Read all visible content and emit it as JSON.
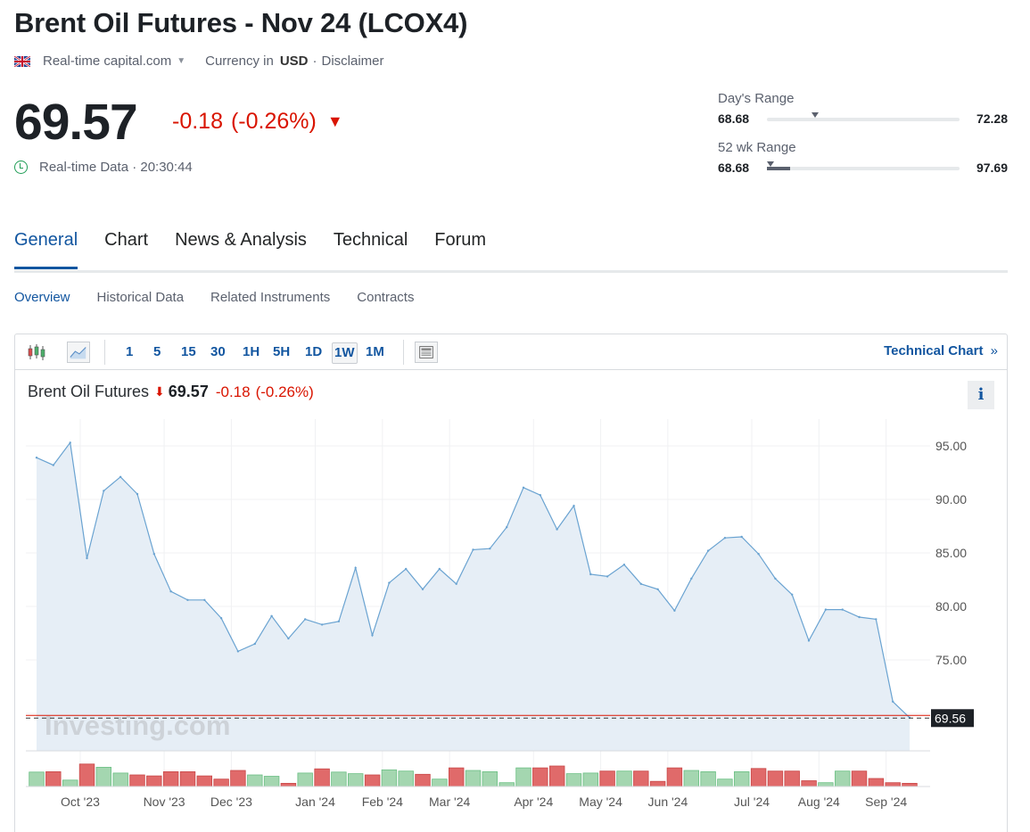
{
  "title": "Brent Oil Futures - Nov 24 (LCOX4)",
  "meta": {
    "source": "Real-time capital.com",
    "currency_label": "Currency in",
    "currency": "USD",
    "separator": "·",
    "disclaimer": "Disclaimer"
  },
  "quote": {
    "price": "69.57",
    "change": "-0.18",
    "change_pct": "(-0.26%)",
    "realtime_label": "Real-time Data · 20:30:44"
  },
  "ranges": {
    "day": {
      "label": "Day's Range",
      "low": "68.68",
      "high": "72.28",
      "position": 0.25,
      "fill": 0
    },
    "week52": {
      "label": "52 wk Range",
      "low": "68.68",
      "high": "97.69",
      "position": 0.02,
      "fill": 0.12
    }
  },
  "tabs": [
    {
      "label": "General",
      "active": true
    },
    {
      "label": "Chart",
      "active": false
    },
    {
      "label": "News & Analysis",
      "active": false
    },
    {
      "label": "Technical",
      "active": false
    },
    {
      "label": "Forum",
      "active": false
    }
  ],
  "subtabs": [
    {
      "label": "Overview",
      "active": true
    },
    {
      "label": "Historical Data",
      "active": false
    },
    {
      "label": "Related Instruments",
      "active": false
    },
    {
      "label": "Contracts",
      "active": false
    }
  ],
  "toolbar": {
    "timeframes": [
      "1",
      "5",
      "15",
      "30",
      "1H",
      "5H",
      "1D",
      "1W",
      "1M"
    ],
    "selected": "1W",
    "technical_chart": "Technical Chart",
    "technical_chevron": "»"
  },
  "legend": {
    "name": "Brent Oil Futures",
    "arrow": "⬇",
    "price": "69.57",
    "change": "-0.18",
    "change_pct": "(-0.26%)"
  },
  "info_label": "i",
  "colors": {
    "line": "#6aa3d1",
    "area": "#e6eef6",
    "down": "#d91400",
    "vol_up": "#a4d6b0",
    "vol_down": "#e06a6a",
    "accent": "#1256a0"
  },
  "chart_data": {
    "type": "area",
    "watermark": "Investing.com",
    "yticks": [
      95.0,
      90.0,
      85.0,
      80.0,
      75.0,
      70.0
    ],
    "ylim": [
      66.5,
      97.5
    ],
    "last_price": 69.56,
    "last_price_label": "69.56",
    "xticks": [
      {
        "label": "Oct '23",
        "index": 2.6
      },
      {
        "label": "Nov '23",
        "index": 7.6
      },
      {
        "label": "Dec '23",
        "index": 11.6
      },
      {
        "label": "Jan '24",
        "index": 16.6
      },
      {
        "label": "Feb '24",
        "index": 20.6
      },
      {
        "label": "Mar '24",
        "index": 24.6
      },
      {
        "label": "Apr '24",
        "index": 29.6
      },
      {
        "label": "May '24",
        "index": 33.6
      },
      {
        "label": "Jun '24",
        "index": 37.6
      },
      {
        "label": "Jul '24",
        "index": 42.6
      },
      {
        "label": "Aug '24",
        "index": 46.6
      },
      {
        "label": "Sep '24",
        "index": 50.6
      }
    ],
    "values": [
      93.9,
      93.2,
      95.3,
      84.5,
      90.8,
      92.1,
      90.5,
      84.9,
      81.4,
      80.6,
      80.6,
      78.9,
      75.8,
      76.5,
      79.1,
      77.0,
      78.8,
      78.3,
      78.6,
      83.6,
      77.3,
      82.2,
      83.5,
      81.6,
      83.5,
      82.1,
      85.3,
      85.4,
      87.4,
      91.1,
      90.4,
      87.2,
      89.4,
      83.0,
      82.8,
      83.9,
      82.1,
      81.6,
      79.6,
      82.6,
      85.2,
      86.4,
      86.5,
      84.9,
      82.6,
      81.1,
      76.8,
      79.7,
      79.7,
      79.0,
      78.8,
      71.1,
      69.6
    ],
    "volume": [
      {
        "v": 0.45,
        "up": true
      },
      {
        "v": 0.46,
        "up": false
      },
      {
        "v": 0.2,
        "up": true
      },
      {
        "v": 0.7,
        "up": false
      },
      {
        "v": 0.6,
        "up": true
      },
      {
        "v": 0.42,
        "up": true
      },
      {
        "v": 0.36,
        "up": false
      },
      {
        "v": 0.33,
        "up": false
      },
      {
        "v": 0.46,
        "up": false
      },
      {
        "v": 0.46,
        "up": false
      },
      {
        "v": 0.33,
        "up": false
      },
      {
        "v": 0.23,
        "up": false
      },
      {
        "v": 0.5,
        "up": false
      },
      {
        "v": 0.36,
        "up": true
      },
      {
        "v": 0.32,
        "up": true
      },
      {
        "v": 0.1,
        "up": false
      },
      {
        "v": 0.42,
        "up": true
      },
      {
        "v": 0.55,
        "up": false
      },
      {
        "v": 0.45,
        "up": true
      },
      {
        "v": 0.4,
        "up": true
      },
      {
        "v": 0.36,
        "up": false
      },
      {
        "v": 0.52,
        "up": true
      },
      {
        "v": 0.48,
        "up": true
      },
      {
        "v": 0.38,
        "up": false
      },
      {
        "v": 0.23,
        "up": true
      },
      {
        "v": 0.58,
        "up": false
      },
      {
        "v": 0.5,
        "up": true
      },
      {
        "v": 0.46,
        "up": true
      },
      {
        "v": 0.12,
        "up": true
      },
      {
        "v": 0.58,
        "up": true
      },
      {
        "v": 0.58,
        "up": false
      },
      {
        "v": 0.64,
        "up": false
      },
      {
        "v": 0.4,
        "up": true
      },
      {
        "v": 0.42,
        "up": true
      },
      {
        "v": 0.48,
        "up": false
      },
      {
        "v": 0.48,
        "up": true
      },
      {
        "v": 0.48,
        "up": false
      },
      {
        "v": 0.16,
        "up": false
      },
      {
        "v": 0.58,
        "up": false
      },
      {
        "v": 0.5,
        "up": true
      },
      {
        "v": 0.46,
        "up": true
      },
      {
        "v": 0.23,
        "up": true
      },
      {
        "v": 0.46,
        "up": true
      },
      {
        "v": 0.56,
        "up": false
      },
      {
        "v": 0.48,
        "up": false
      },
      {
        "v": 0.48,
        "up": false
      },
      {
        "v": 0.18,
        "up": false
      },
      {
        "v": 0.12,
        "up": true
      },
      {
        "v": 0.48,
        "up": true
      },
      {
        "v": 0.48,
        "up": false
      },
      {
        "v": 0.25,
        "up": false
      },
      {
        "v": 0.12,
        "up": false
      },
      {
        "v": 0.1,
        "up": false
      }
    ]
  }
}
